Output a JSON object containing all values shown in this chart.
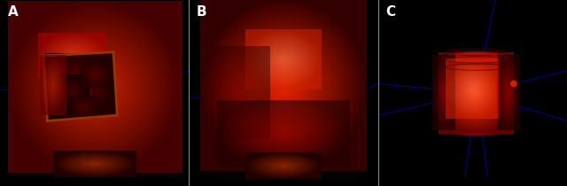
{
  "background_color": "#000000",
  "label_color": "#ffffff",
  "label_fontsize": 11,
  "label_fontweight": "bold",
  "labels": [
    "A",
    "B",
    "C"
  ],
  "axis_line_color": "#00008B",
  "skull_color_dark": "#880000",
  "skull_color_mid": "#cc0000",
  "skull_color_bright": "#ff2200",
  "skull_highlight": "#ff6644",
  "fig_width": 6.4,
  "fig_height": 2.1,
  "separator_color": "#888888"
}
